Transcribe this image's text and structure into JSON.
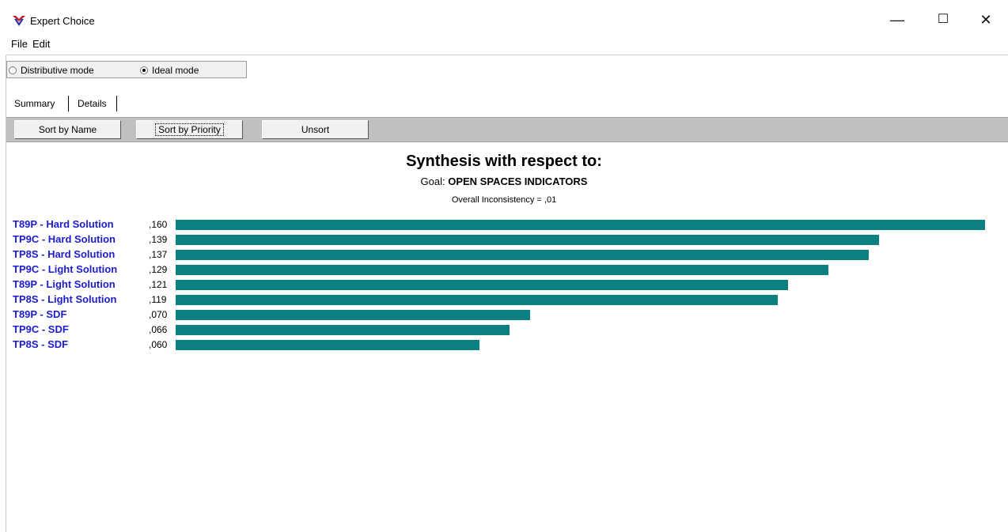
{
  "window": {
    "title": "Expert Choice",
    "icon": "expert-choice-logo",
    "controls": {
      "minimize": "—",
      "maximize": "☐",
      "close": "✕"
    }
  },
  "menu": {
    "file": "File",
    "edit": "Edit"
  },
  "modes": {
    "distributive": "Distributive mode",
    "ideal": "Ideal mode",
    "selected": "ideal"
  },
  "tabs": {
    "summary": "Summary",
    "details": "Details",
    "active": "summary"
  },
  "toolbar": {
    "sort_by_name": "Sort by Name",
    "sort_by_priority": "Sort by Priority",
    "unsort": "Unsort"
  },
  "synthesis": {
    "title": "Synthesis with respect to:",
    "goal_prefix": "Goal:",
    "goal_name": "OPEN SPACES INDICATORS",
    "inconsistency": "Overall Inconsistency = ,01"
  },
  "colors": {
    "bar": "#0a8080",
    "label": "#1c1cd0"
  },
  "chart_data": {
    "type": "bar",
    "orientation": "horizontal",
    "categories": [
      "T89P - Hard Solution",
      "TP9C - Hard Solution",
      "TP8S - Hard Solution",
      "TP9C - Light Solution",
      "T89P - Light Solution",
      "TP8S - Light Solution",
      "T89P - SDF",
      "TP9C - SDF",
      "TP8S - SDF"
    ],
    "values": [
      0.16,
      0.139,
      0.137,
      0.129,
      0.121,
      0.119,
      0.07,
      0.066,
      0.06
    ],
    "value_labels": [
      ",160",
      ",139",
      ",137",
      ",129",
      ",121",
      ",119",
      ",070",
      ",066",
      ",060"
    ]
  }
}
